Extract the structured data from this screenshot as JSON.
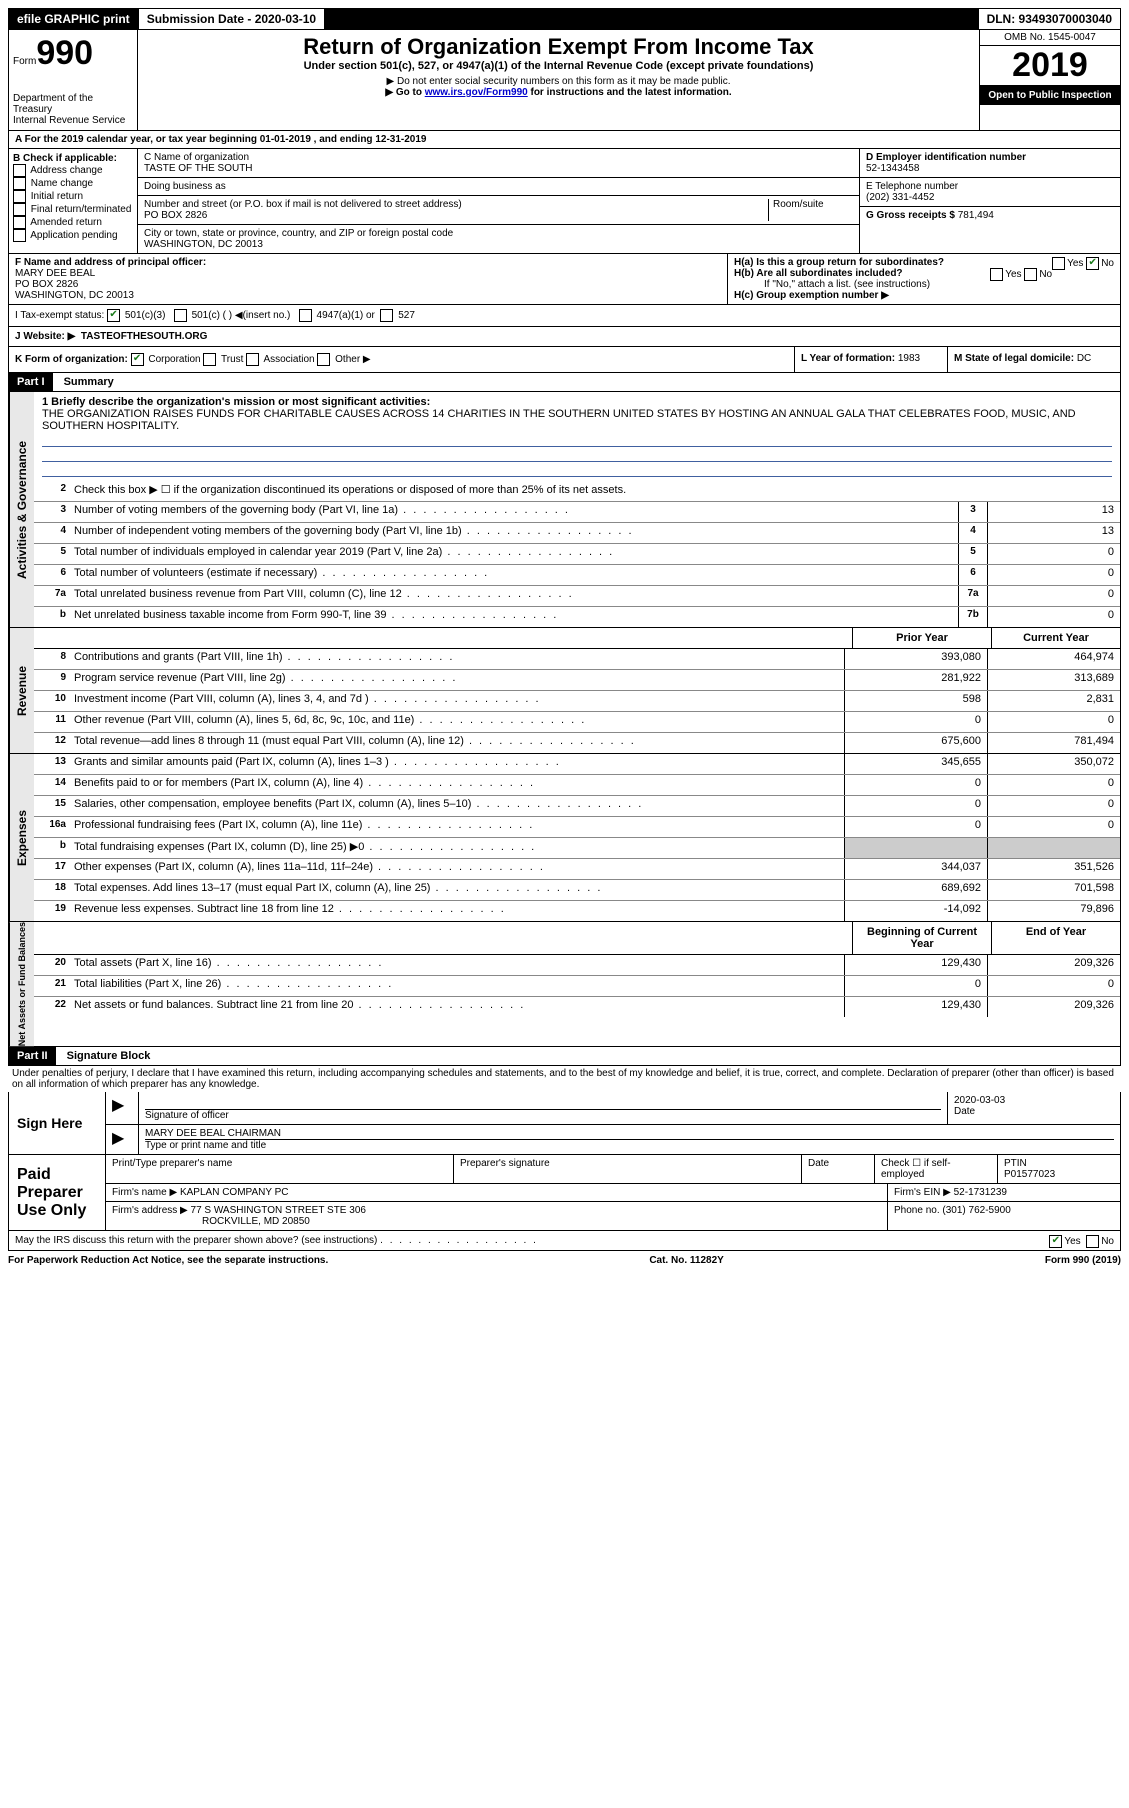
{
  "header": {
    "efile": "efile GRAPHIC print",
    "subDateLabel": "Submission Date - 2020-03-10",
    "dln": "DLN: 93493070003040"
  },
  "formBlock": {
    "formWord": "Form",
    "formNum": "990",
    "dept1": "Department of the Treasury",
    "dept2": "Internal Revenue Service",
    "title": "Return of Organization Exempt From Income Tax",
    "subtitle": "Under section 501(c), 527, or 4947(a)(1) of the Internal Revenue Code (except private foundations)",
    "note1": "▶ Do not enter social security numbers on this form as it may be made public.",
    "note2a": "▶ Go to ",
    "note2link": "www.irs.gov/Form990",
    "note2b": " for instructions and the latest information.",
    "omb": "OMB No. 1545-0047",
    "year": "2019",
    "openPublic": "Open to Public Inspection"
  },
  "periodLine": "A For the 2019 calendar year, or tax year beginning 01-01-2019   , and ending 12-31-2019",
  "boxB": {
    "label": "B Check if applicable:",
    "items": [
      "Address change",
      "Name change",
      "Initial return",
      "Final return/terminated",
      "Amended return",
      "Application pending"
    ]
  },
  "boxC": {
    "nameLabel": "C Name of organization",
    "name": "TASTE OF THE SOUTH",
    "dbaLabel": "Doing business as",
    "dba": "",
    "addrLabel": "Number and street (or P.O. box if mail is not delivered to street address)",
    "roomLabel": "Room/suite",
    "addr": "PO BOX 2826",
    "cityLabel": "City or town, state or province, country, and ZIP or foreign postal code",
    "city": "WASHINGTON, DC  20013"
  },
  "boxD": {
    "label": "D Employer identification number",
    "val": "52-1343458"
  },
  "boxE": {
    "label": "E Telephone number",
    "val": "(202) 331-4452"
  },
  "boxG": {
    "label": "G Gross receipts $",
    "val": "781,494"
  },
  "boxF": {
    "label": "F Name and address of principal officer:",
    "name": "MARY DEE BEAL",
    "addr1": "PO BOX 2826",
    "addr2": "WASHINGTON, DC  20013"
  },
  "boxH": {
    "a": "H(a)  Is this a group return for subordinates?",
    "b": "H(b)  Are all subordinates included?",
    "bNote": "If \"No,\" attach a list. (see instructions)",
    "c": "H(c)  Group exemption number ▶"
  },
  "boxI": {
    "label": "I  Tax-exempt status:",
    "o1": "501(c)(3)",
    "o2": "501(c) (  ) ◀(insert no.)",
    "o3": "4947(a)(1) or",
    "o4": "527"
  },
  "boxJ": {
    "label": "J   Website: ▶",
    "val": "TASTEOFTHESOUTH.ORG"
  },
  "boxK": {
    "label": "K Form of organization:",
    "o1": "Corporation",
    "o2": "Trust",
    "o3": "Association",
    "o4": "Other ▶"
  },
  "boxL": {
    "label": "L Year of formation:",
    "val": "1983"
  },
  "boxM": {
    "label": "M State of legal domicile:",
    "val": "DC"
  },
  "part1": {
    "tag": "Part I",
    "title": "Summary",
    "l1label": "1   Briefly describe the organization's mission or most significant activities:",
    "l1text": "THE ORGANIZATION RAISES FUNDS FOR CHARITABLE CAUSES ACROSS 14 CHARITIES IN THE SOUTHERN UNITED STATES BY HOSTING AN ANNUAL GALA THAT CELEBRATES FOOD, MUSIC, AND SOUTHERN HOSPITALITY.",
    "l2": "Check this box ▶ ☐ if the organization discontinued its operations or disposed of more than 25% of its net assets.",
    "lines_ag": [
      {
        "n": "3",
        "t": "Number of voting members of the governing body (Part VI, line 1a)",
        "b": "3",
        "v": "13"
      },
      {
        "n": "4",
        "t": "Number of independent voting members of the governing body (Part VI, line 1b)",
        "b": "4",
        "v": "13"
      },
      {
        "n": "5",
        "t": "Total number of individuals employed in calendar year 2019 (Part V, line 2a)",
        "b": "5",
        "v": "0"
      },
      {
        "n": "6",
        "t": "Total number of volunteers (estimate if necessary)",
        "b": "6",
        "v": "0"
      },
      {
        "n": "7a",
        "t": "Total unrelated business revenue from Part VIII, column (C), line 12",
        "b": "7a",
        "v": "0"
      },
      {
        "n": "b",
        "t": "Net unrelated business taxable income from Form 990-T, line 39",
        "b": "7b",
        "v": "0"
      }
    ],
    "priorHead": "Prior Year",
    "currHead": "Current Year",
    "revenue": [
      {
        "n": "8",
        "t": "Contributions and grants (Part VIII, line 1h)",
        "p": "393,080",
        "c": "464,974"
      },
      {
        "n": "9",
        "t": "Program service revenue (Part VIII, line 2g)",
        "p": "281,922",
        "c": "313,689"
      },
      {
        "n": "10",
        "t": "Investment income (Part VIII, column (A), lines 3, 4, and 7d )",
        "p": "598",
        "c": "2,831"
      },
      {
        "n": "11",
        "t": "Other revenue (Part VIII, column (A), lines 5, 6d, 8c, 9c, 10c, and 11e)",
        "p": "0",
        "c": "0"
      },
      {
        "n": "12",
        "t": "Total revenue—add lines 8 through 11 (must equal Part VIII, column (A), line 12)",
        "p": "675,600",
        "c": "781,494"
      }
    ],
    "expenses": [
      {
        "n": "13",
        "t": "Grants and similar amounts paid (Part IX, column (A), lines 1–3 )",
        "p": "345,655",
        "c": "350,072"
      },
      {
        "n": "14",
        "t": "Benefits paid to or for members (Part IX, column (A), line 4)",
        "p": "0",
        "c": "0"
      },
      {
        "n": "15",
        "t": "Salaries, other compensation, employee benefits (Part IX, column (A), lines 5–10)",
        "p": "0",
        "c": "0"
      },
      {
        "n": "16a",
        "t": "Professional fundraising fees (Part IX, column (A), line 11e)",
        "p": "0",
        "c": "0"
      },
      {
        "n": "b",
        "t": "Total fundraising expenses (Part IX, column (D), line 25) ▶0",
        "p": "shade",
        "c": "shade"
      },
      {
        "n": "17",
        "t": "Other expenses (Part IX, column (A), lines 11a–11d, 11f–24e)",
        "p": "344,037",
        "c": "351,526"
      },
      {
        "n": "18",
        "t": "Total expenses. Add lines 13–17 (must equal Part IX, column (A), line 25)",
        "p": "689,692",
        "c": "701,598"
      },
      {
        "n": "19",
        "t": "Revenue less expenses. Subtract line 18 from line 12",
        "p": "-14,092",
        "c": "79,896"
      }
    ],
    "bocHead": "Beginning of Current Year",
    "eoyHead": "End of Year",
    "netassets": [
      {
        "n": "20",
        "t": "Total assets (Part X, line 16)",
        "p": "129,430",
        "c": "209,326"
      },
      {
        "n": "21",
        "t": "Total liabilities (Part X, line 26)",
        "p": "0",
        "c": "0"
      },
      {
        "n": "22",
        "t": "Net assets or fund balances. Subtract line 21 from line 20",
        "p": "129,430",
        "c": "209,326"
      }
    ],
    "sideLabels": {
      "ag": "Activities & Governance",
      "rev": "Revenue",
      "exp": "Expenses",
      "na": "Net Assets or Fund Balances"
    }
  },
  "part2": {
    "tag": "Part II",
    "title": "Signature Block",
    "perjury": "Under penalties of perjury, I declare that I have examined this return, including accompanying schedules and statements, and to the best of my knowledge and belief, it is true, correct, and complete. Declaration of preparer (other than officer) is based on all information of which preparer has any knowledge.",
    "signHere": "Sign Here",
    "sigOfficer": "Signature of officer",
    "sigDate": "2020-03-03",
    "dateLabel": "Date",
    "typedName": "MARY DEE BEAL  CHAIRMAN",
    "typedNameLabel": "Type or print name and title",
    "paidPrep": "Paid Preparer Use Only",
    "pp": {
      "printName": "Print/Type preparer's name",
      "prepSig": "Preparer's signature",
      "date": "Date",
      "checkIf": "Check ☐ if self-employed",
      "ptinLabel": "PTIN",
      "ptin": "P01577023",
      "firmNameLabel": "Firm's name    ▶",
      "firmName": "KAPLAN COMPANY PC",
      "firmEinLabel": "Firm's EIN ▶",
      "firmEin": "52-1731239",
      "firmAddrLabel": "Firm's address ▶",
      "firmAddr1": "77 S WASHINGTON STREET STE 306",
      "firmAddr2": "ROCKVILLE, MD  20850",
      "phoneLabel": "Phone no.",
      "phone": "(301) 762-5900"
    },
    "mayIRS": "May the IRS discuss this return with the preparer shown above? (see instructions)",
    "yes": "Yes",
    "no": "No"
  },
  "footer": {
    "left": "For Paperwork Reduction Act Notice, see the separate instructions.",
    "mid": "Cat. No. 11282Y",
    "right": "Form 990 (2019)"
  }
}
